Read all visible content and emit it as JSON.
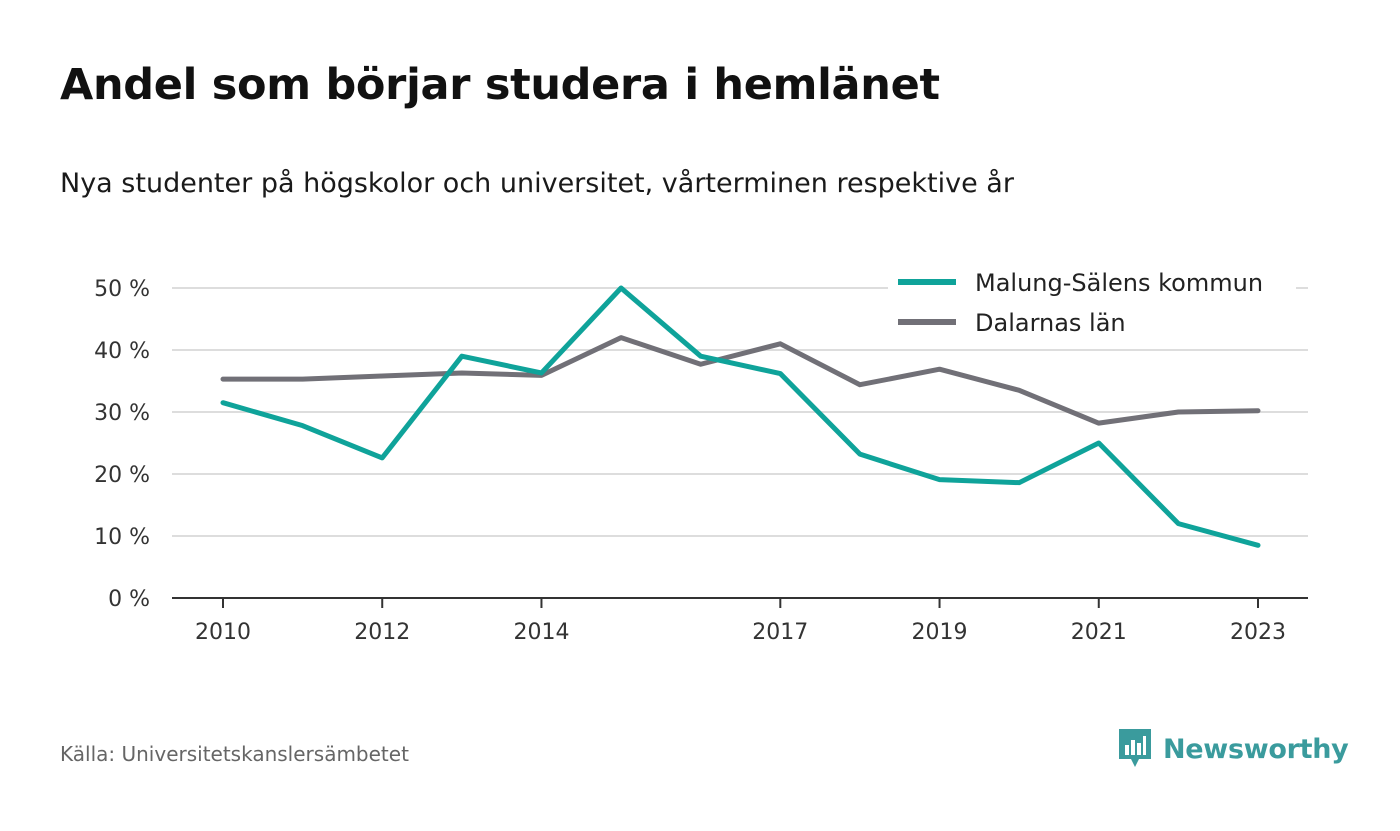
{
  "header": {
    "title": "Andel som börjar studera i hemlänet",
    "subtitle": "Nya studenter på högskolor och universitet, vårterminen respektive år"
  },
  "footer": {
    "source": "Källa: Universitetskanslersämbetet",
    "brand": "Newsworthy"
  },
  "colors": {
    "series1": "#0fa39a",
    "series2": "#717077",
    "grid": "#dddddd",
    "axis": "#333333",
    "brand": "#3a9b9d"
  },
  "icons": {
    "brand_logo": "newsworthy-logo-icon"
  },
  "chart_data": {
    "type": "line",
    "title": "Andel som börjar studera i hemlänet",
    "subtitle": "Nya studenter på högskolor och universitet, vårterminen respektive år",
    "x": [
      2010,
      2011,
      2012,
      2013,
      2014,
      2015,
      2016,
      2017,
      2018,
      2019,
      2020,
      2021,
      2022,
      2023
    ],
    "x_tick_labels": [
      "2010",
      "2012",
      "2014",
      "2017",
      "2019",
      "2021",
      "2023"
    ],
    "y_tick_labels": [
      "0 %",
      "10 %",
      "20 %",
      "30 %",
      "40 %",
      "50 %"
    ],
    "ylim": [
      0,
      50
    ],
    "y_unit": "%",
    "grid": true,
    "legend_position": "top-right",
    "series": [
      {
        "name": "Malung-Sälens kommun",
        "color": "#0fa39a",
        "values": [
          31.5,
          27.8,
          22.6,
          39.0,
          36.3,
          50.0,
          39.0,
          36.2,
          23.2,
          19.1,
          18.6,
          25.0,
          12.0,
          8.5
        ]
      },
      {
        "name": "Dalarnas län",
        "color": "#717077",
        "values": [
          35.3,
          35.3,
          35.8,
          36.3,
          35.9,
          42.0,
          37.7,
          41.0,
          34.4,
          36.9,
          33.5,
          28.2,
          30.0,
          30.2
        ]
      }
    ]
  }
}
